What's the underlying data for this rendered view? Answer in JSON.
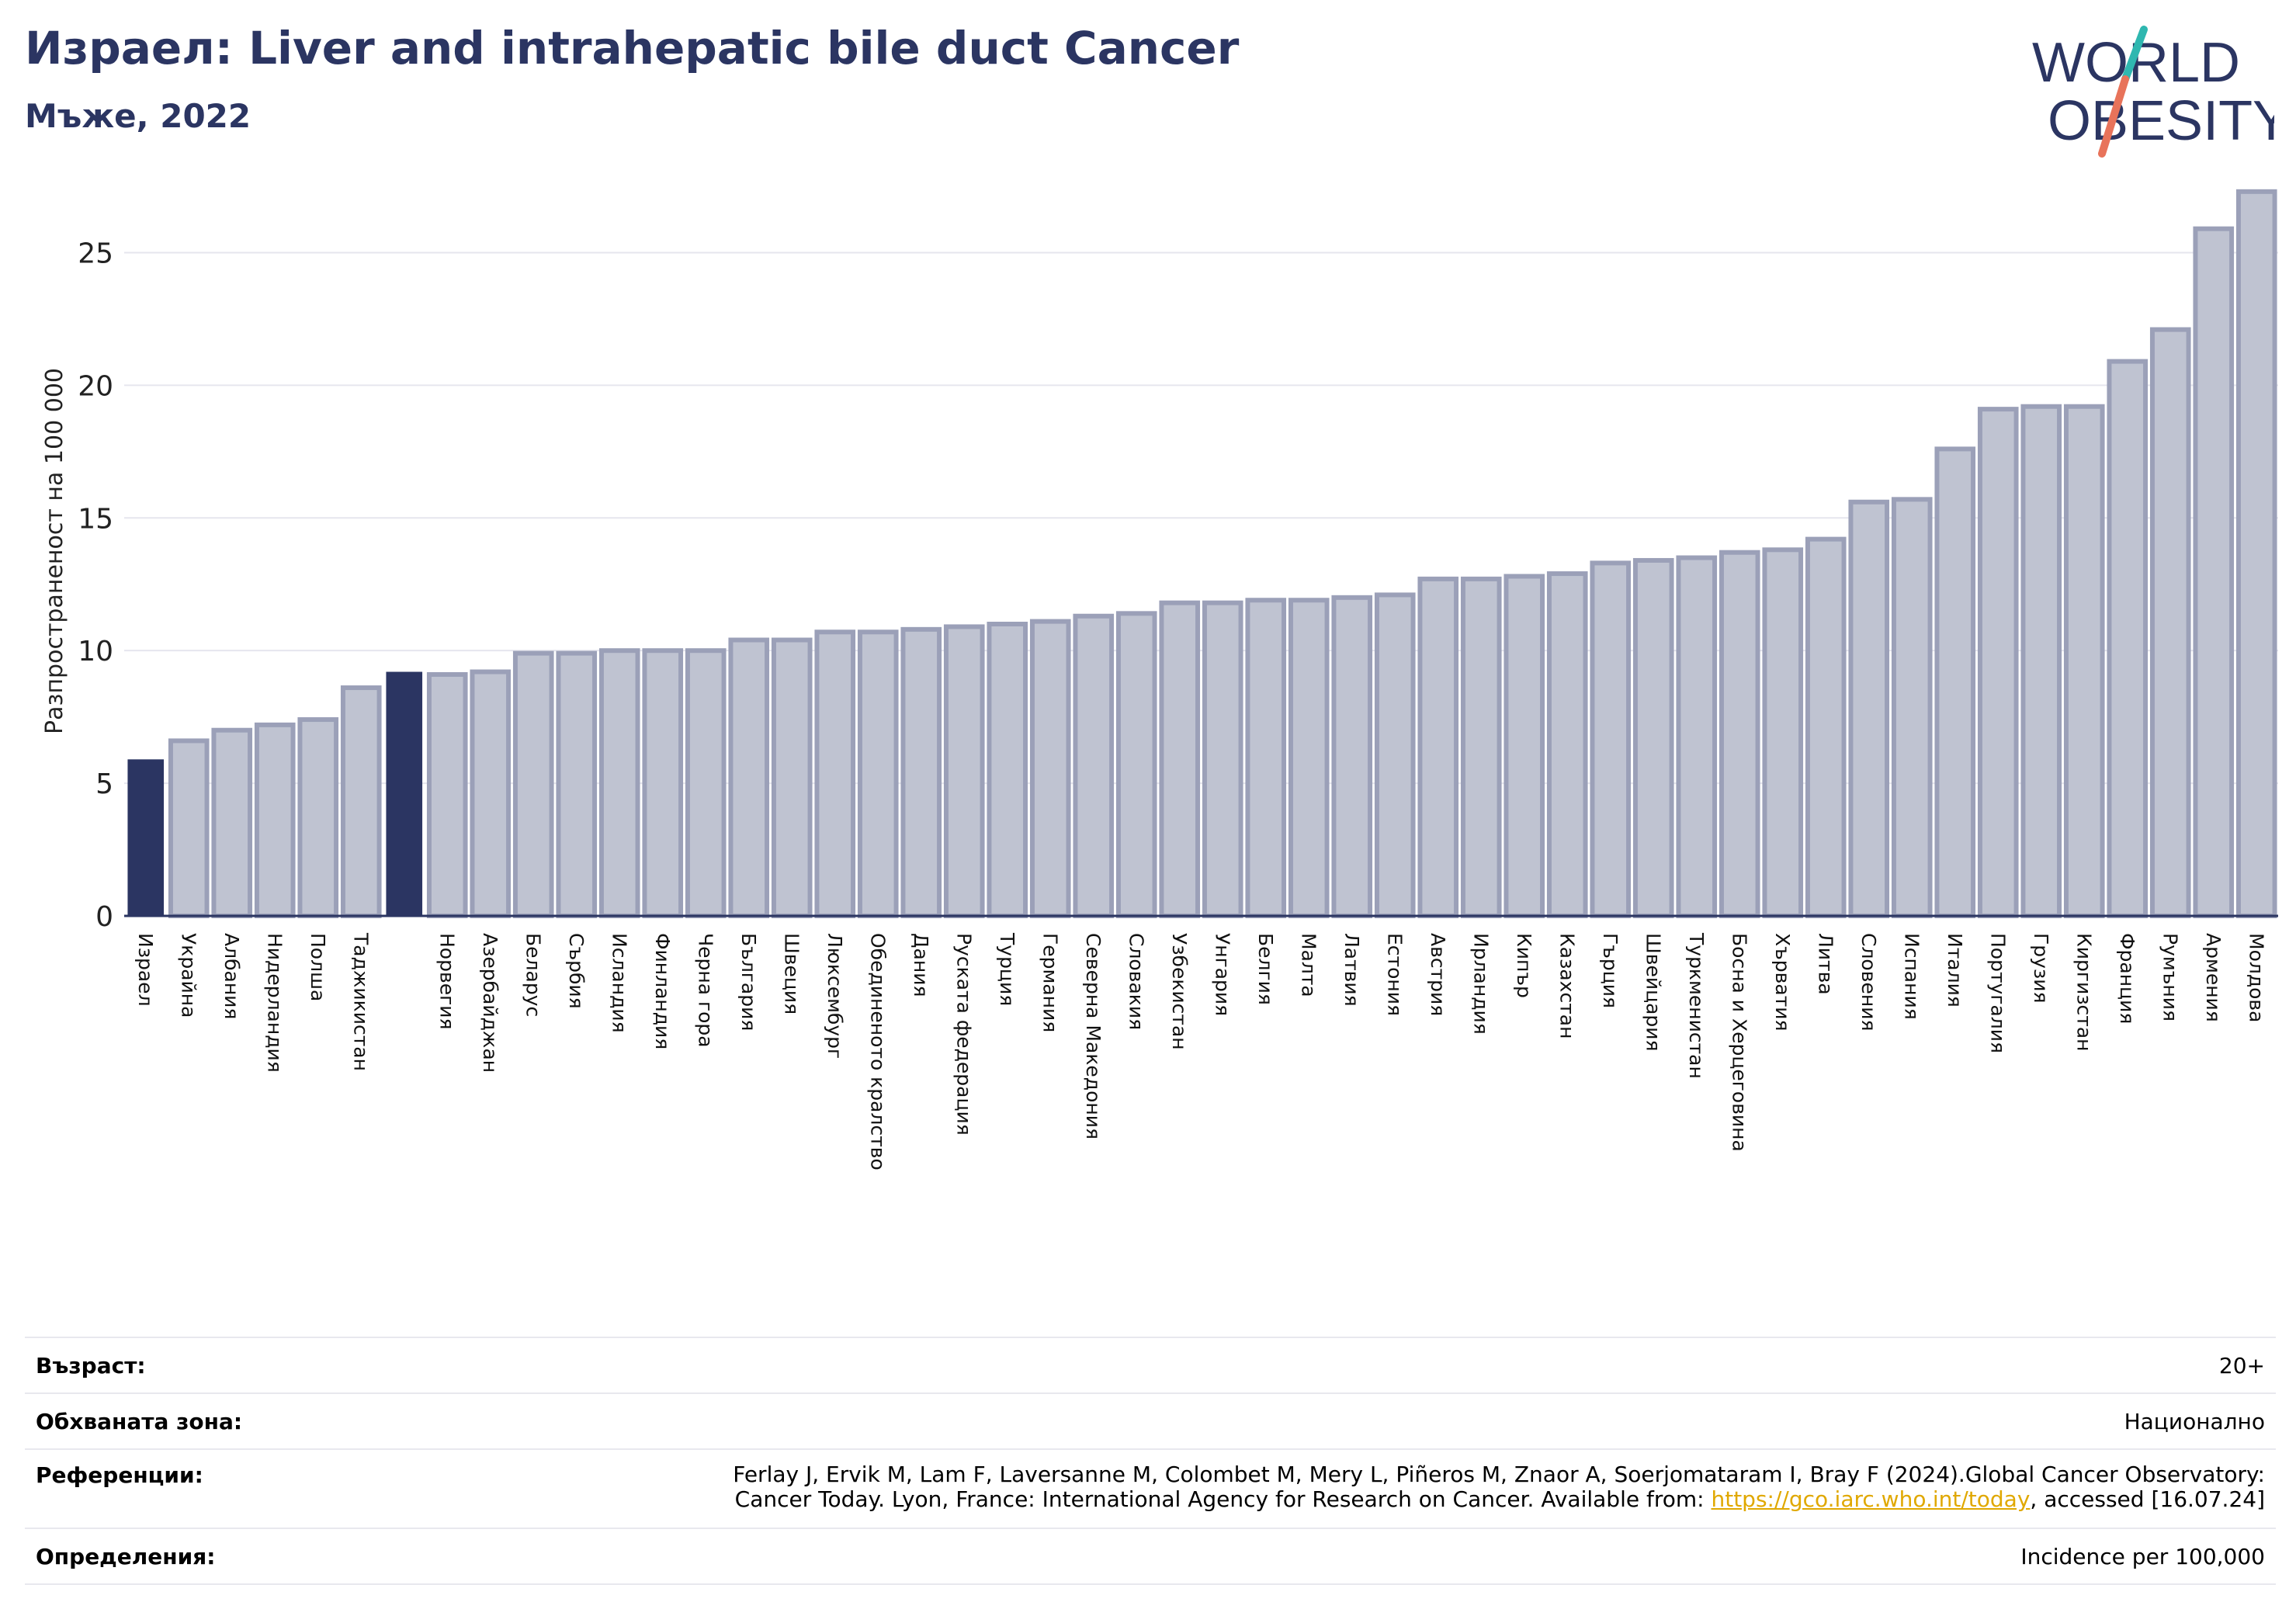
{
  "header": {
    "title": "Израел: Liver and intrahepatic bile duct Cancer",
    "subtitle": "Мъже, 2022"
  },
  "logo": {
    "line1": "WORLD",
    "line2": "OBESITY",
    "icon": "world-obesity-logo"
  },
  "colors": {
    "highlight": "#2b3562",
    "bar_fill": "#bfc3d1",
    "bar_stroke": "#9ba0b8",
    "accent_teal": "#2fb7b0",
    "accent_coral": "#e8735a",
    "link": "#e0a800"
  },
  "chart_data": {
    "type": "bar",
    "ylabel": "Разпространеност  на 100 000",
    "xlabel": "",
    "ylim": [
      0,
      27.5
    ],
    "yticks": [
      0,
      5,
      10,
      15,
      20,
      25
    ],
    "grid": true,
    "categories": [
      "Израел",
      "Украйна",
      "Албания",
      "Нидерландия",
      "Полша",
      "Таджикистан",
      "",
      "Норвегия",
      "Азербайджан",
      "Беларус",
      "Сърбия",
      "Исландия",
      "Финландия",
      "Черна гора",
      "България",
      "Швеция",
      "Люксембург",
      "Обединеното кралство",
      "Дания",
      "Руската федерация",
      "Турция",
      "Германия",
      "Северна Македония",
      "Словакия",
      "Узбекистан",
      "Унгария",
      "Белгия",
      "Малта",
      "Латвия",
      "Естония",
      "Австрия",
      "Ирландия",
      "Кипър",
      "Казахстан",
      "Гърция",
      "Швейцария",
      "Туркменистан",
      "Босна и Херцеговина",
      "Хърватия",
      "Литва",
      "Словения",
      "Испания",
      "Италия",
      "Португалия",
      "Грузия",
      "Киргизстан",
      "Франция",
      "Румъния",
      "Армения",
      "Молдова"
    ],
    "values": [
      5.9,
      6.6,
      7.0,
      7.2,
      7.4,
      8.6,
      9.2,
      9.1,
      9.2,
      9.9,
      9.9,
      10.0,
      10.0,
      10.0,
      10.4,
      10.4,
      10.7,
      10.7,
      10.8,
      10.9,
      11.0,
      11.1,
      11.3,
      11.4,
      11.8,
      11.8,
      11.9,
      11.9,
      12.0,
      12.1,
      12.7,
      12.7,
      12.8,
      12.9,
      13.3,
      13.4,
      13.5,
      13.7,
      13.8,
      14.2,
      15.6,
      15.7,
      17.6,
      19.1,
      19.2,
      19.2,
      20.9,
      22.1,
      25.9,
      27.3
    ],
    "highlighted": [
      0,
      6
    ]
  },
  "info": {
    "age_label": "Възраст:",
    "age_value": "20+",
    "area_label": "Обхваната зона:",
    "area_value": "Национално",
    "refs_label": "Референции:",
    "refs_line1": "Ferlay J, Ervik M, Lam F, Laversanne M, Colombet M, Mery L, Piñeros M, Znaor A, Soerjomataram I, Bray F (2024).Global Cancer Observatory:",
    "refs_line2_pre": "Cancer Today. Lyon, France: International Agency for Research on Cancer. Available from: ",
    "refs_link": "https://gco.iarc.who.int/today",
    "refs_line2_post": ", accessed [16.07.24]",
    "defs_label": "Определения:",
    "defs_value": "Incidence per 100,000"
  }
}
